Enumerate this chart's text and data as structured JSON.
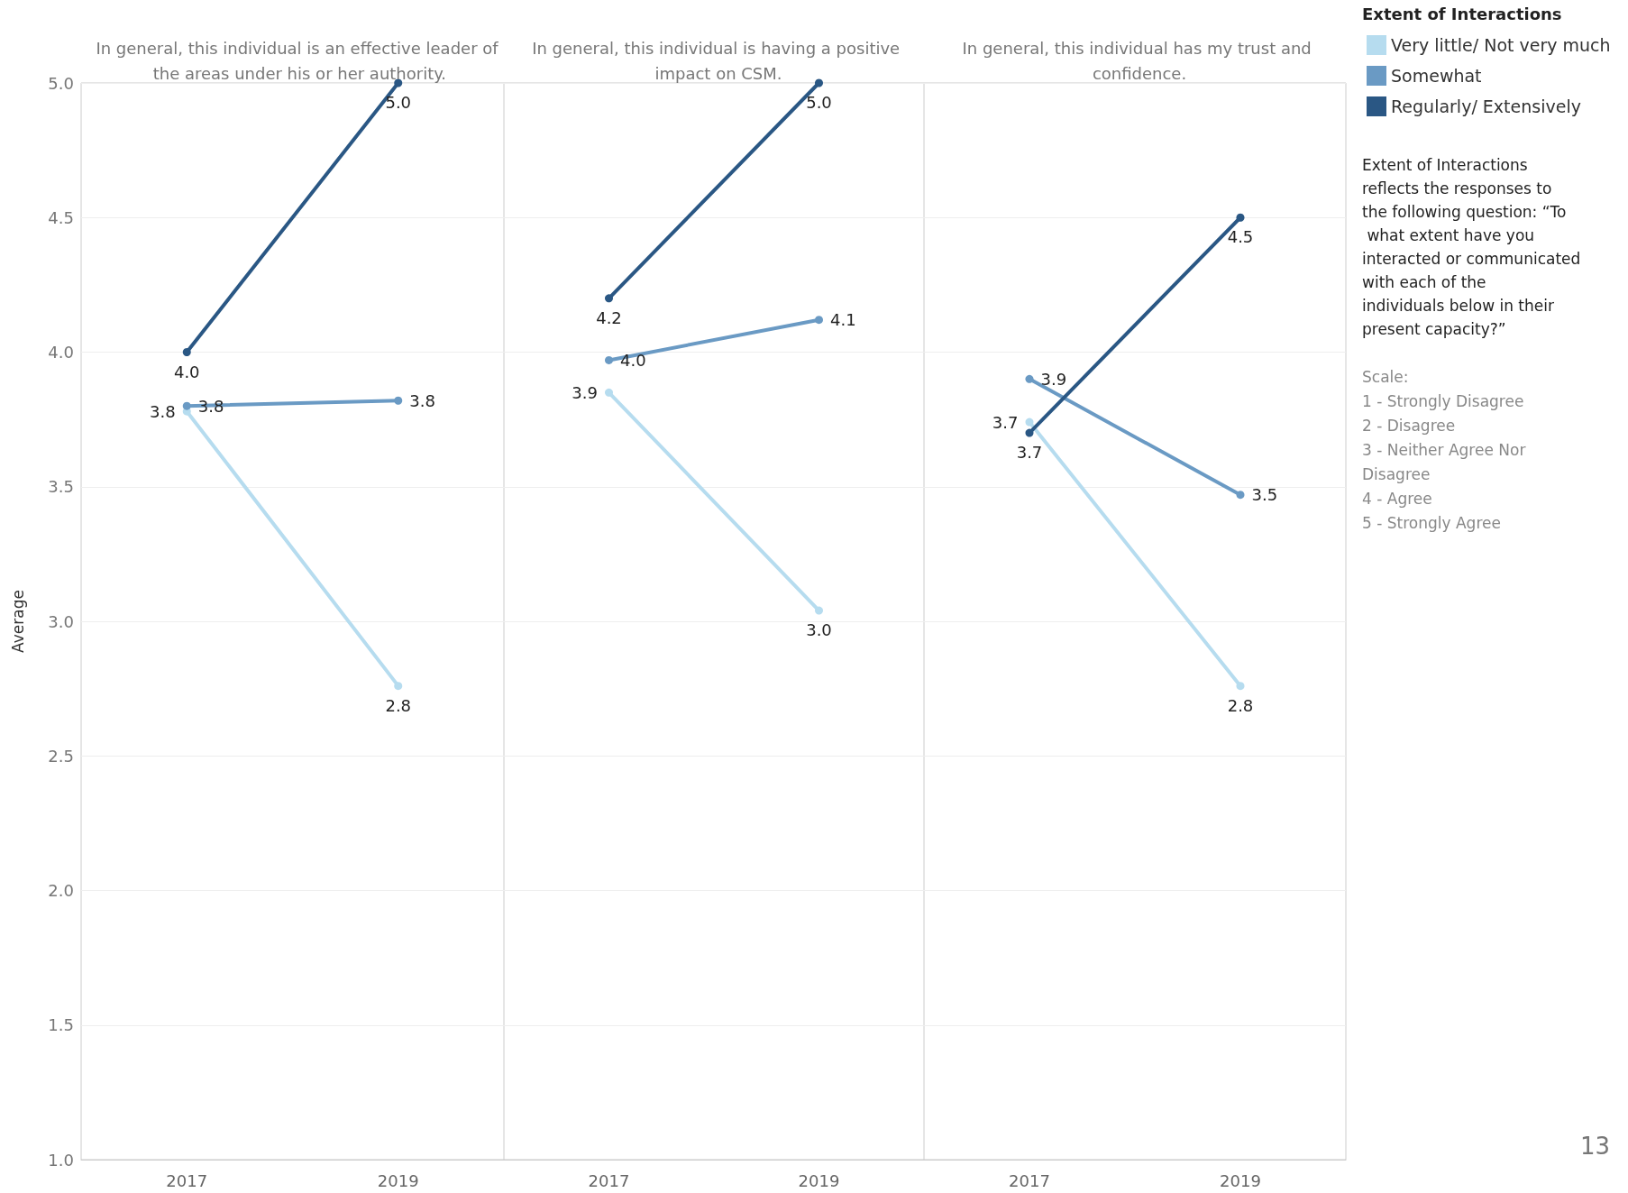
{
  "chart_data": [
    {
      "type": "line",
      "title": "In general, this individual is an effective leader of the areas under his or her authority.",
      "ylabel": "Average",
      "categories": [
        "2017",
        "2019"
      ],
      "ylim": [
        1,
        5
      ],
      "yticks": [
        {
          "value": 1,
          "label": "1.0"
        },
        {
          "value": 1.5,
          "label": "1.5"
        },
        {
          "value": 2,
          "label": "2.0"
        },
        {
          "value": 2.5,
          "label": "2.5"
        },
        {
          "value": 3,
          "label": "3.0"
        },
        {
          "value": 3.5,
          "label": "3.5"
        },
        {
          "value": 4,
          "label": "4.0"
        },
        {
          "value": 4.5,
          "label": "4.5"
        },
        {
          "value": 5,
          "label": "5.0"
        }
      ],
      "grid": "y",
      "marker": "circle",
      "line_style": "solid",
      "series": [
        {
          "color": "#b6dcef",
          "values": [
            3.78,
            2.76
          ],
          "value_labels": [
            "3.8",
            "2.8"
          ]
        },
        {
          "color": "#6a9ac4",
          "values": [
            3.8,
            3.82
          ],
          "value_labels": [
            "3.8",
            "3.8"
          ]
        },
        {
          "color": "#2a5784",
          "values": [
            4.0,
            5.0
          ],
          "value_labels": [
            "4.0",
            "5.0"
          ]
        }
      ]
    },
    {
      "type": "line",
      "title": "In general, this individual is having a positive impact on CSM.",
      "categories": [
        "2017",
        "2019"
      ],
      "ylim": [
        1,
        5
      ],
      "yticks": [
        1,
        1.5,
        2,
        2.5,
        3,
        3.5,
        4,
        4.5,
        5
      ],
      "tick_labels": "x",
      "grid": "y",
      "marker": "circle",
      "line_style": "solid",
      "series": [
        {
          "color": "#b6dcef",
          "values": [
            3.85,
            3.04
          ],
          "value_labels": [
            "3.9",
            "3.0"
          ]
        },
        {
          "color": "#6a9ac4",
          "values": [
            3.97,
            4.12
          ],
          "value_labels": [
            "4.0",
            "4.1"
          ]
        },
        {
          "color": "#2a5784",
          "values": [
            4.2,
            5.0
          ],
          "value_labels": [
            "4.2",
            "5.0"
          ]
        }
      ]
    },
    {
      "type": "line",
      "title": "In general, this individual has my trust and confidence.",
      "categories": [
        "2017",
        "2019"
      ],
      "ylim": [
        1,
        5
      ],
      "yticks": [
        1,
        1.5,
        2,
        2.5,
        3,
        3.5,
        4,
        4.5,
        5
      ],
      "tick_labels": "x",
      "grid": "y",
      "marker": "circle",
      "line_style": "solid",
      "legend": "right",
      "legend_title": "Extent of Interactions",
      "series": [
        {
          "name": "Very little/ Not very much",
          "color": "#b6dcef",
          "values": [
            3.74,
            2.76
          ],
          "value_labels": [
            "3.7",
            "2.8"
          ]
        },
        {
          "name": "Somewhat",
          "color": "#6a9ac4",
          "values": [
            3.9,
            3.47
          ],
          "value_labels": [
            "3.9",
            "3.5"
          ]
        },
        {
          "name": "Regularly/ Extensively",
          "color": "#2a5784",
          "values": [
            3.7,
            4.5
          ],
          "value_labels": [
            "3.7",
            "4.5"
          ]
        }
      ],
      "annotations": [
        "Extent of Interactions reflects the responses to the following question: “To what extent have you interacted or communicated with each of the individuals below in their present capacity?”",
        "Scale:",
        "1 - Strongly Disagree",
        "2 - Disagree",
        "3 - Neither Agree Nor Disagree",
        "4 - Agree",
        "5 - Strongly Agree",
        "13"
      ]
    }
  ]
}
